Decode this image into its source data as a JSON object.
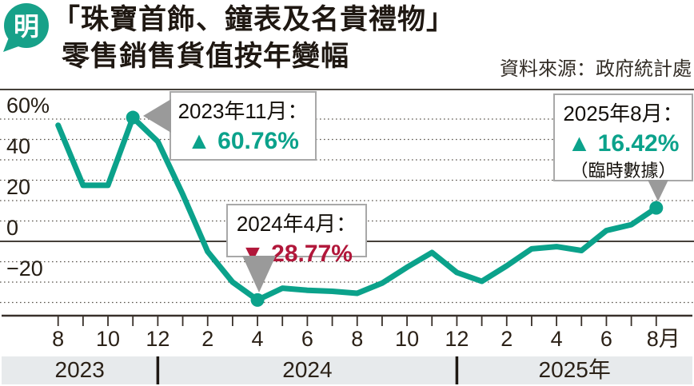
{
  "header": {
    "logo_glyph": "明",
    "title_line1": "「珠寶首飾、鐘表及名貴禮物」",
    "title_line2": "零售銷售貨值按年變幅",
    "source": "資料來源：政府統計處"
  },
  "theme": {
    "teal": "#0ba28b",
    "crimson": "#b1173a",
    "pointer_gray": "#9a9a9a",
    "band_gray": "#e7eaec",
    "ink": "#2b2117",
    "grid": "#5a544c"
  },
  "chart_data": {
    "type": "line",
    "title": "「珠寶首飾、鐘表及名貴禮物」零售銷售貨值按年變幅",
    "series_name": "零售銷售貨值按年變幅",
    "unit": "%",
    "x": [
      "2023-08",
      "2023-09",
      "2023-10",
      "2023-11",
      "2023-12",
      "2024-01",
      "2024-02",
      "2024-03",
      "2024-04",
      "2024-05",
      "2024-06",
      "2024-07",
      "2024-08",
      "2024-09",
      "2024-10",
      "2024-11",
      "2024-12",
      "2025-01",
      "2025-02",
      "2025-03",
      "2025-04",
      "2025-05",
      "2025-06",
      "2025-07",
      "2025-08"
    ],
    "values": [
      57,
      27.5,
      27.5,
      60.76,
      49,
      23,
      -5,
      -20,
      -28.77,
      -23,
      -24,
      -24.5,
      -25.5,
      -20.5,
      -12.7,
      -5.5,
      -15.3,
      -19.6,
      -12,
      -3.7,
      -2.6,
      -4.5,
      5.3,
      8.2,
      16.42
    ],
    "ylim": [
      -35,
      68
    ],
    "grid": "dotted horizontal every 10, solid zero line",
    "legend_position": "none",
    "y_ticks": [
      {
        "v": 60,
        "label": "60%"
      },
      {
        "v": 50,
        "label": ""
      },
      {
        "v": 40,
        "label": "40"
      },
      {
        "v": 30,
        "label": ""
      },
      {
        "v": 20,
        "label": "20"
      },
      {
        "v": 10,
        "label": ""
      },
      {
        "v": 0,
        "label": "0"
      },
      {
        "v": -10,
        "label": ""
      },
      {
        "v": -20,
        "label": "−20"
      },
      {
        "v": -30,
        "label": ""
      }
    ],
    "x_tick_labels": [
      "8",
      "10",
      "12",
      "2",
      "4",
      "6",
      "8",
      "10",
      "12",
      "2",
      "4",
      "6",
      "8月"
    ],
    "x_tick_label_every": 2,
    "year_bands": {
      "labels": [
        "2023",
        "2024",
        "2025年"
      ],
      "divider_month_indices": [
        4,
        16
      ]
    },
    "marked_point_indices": [
      3,
      8,
      24
    ]
  },
  "callouts": [
    {
      "date": "2023年11月：",
      "arrow": "▲",
      "value": "60.76%",
      "note": "",
      "color": "teal"
    },
    {
      "date": "2024年4月：",
      "arrow": "▼",
      "value": "28.77%",
      "note": "",
      "color": "crimson"
    },
    {
      "date": "2025年8月：",
      "arrow": "▲",
      "value": "16.42%",
      "note": "（臨時數據）",
      "color": "teal"
    }
  ]
}
